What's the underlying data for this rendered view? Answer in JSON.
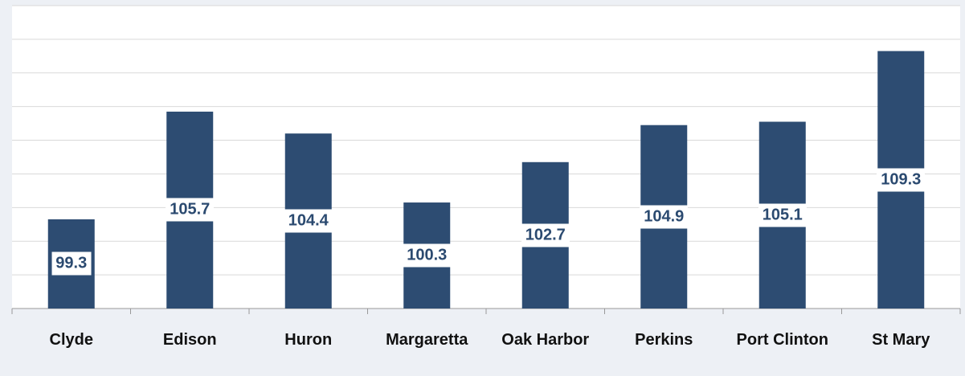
{
  "chart_data": {
    "type": "bar",
    "categories": [
      "Clyde",
      "Edison",
      "Huron",
      "Margaretta",
      "Oak Harbor",
      "Perkins",
      "Port Clinton",
      "St Mary"
    ],
    "values": [
      99.3,
      105.7,
      104.4,
      100.3,
      102.7,
      104.9,
      105.1,
      109.3
    ],
    "color": "#2d4c72",
    "ylim": [
      94,
      112
    ],
    "yticks": [
      94,
      96,
      98,
      100,
      102,
      104,
      106,
      108,
      110,
      112
    ],
    "grid": true
  }
}
